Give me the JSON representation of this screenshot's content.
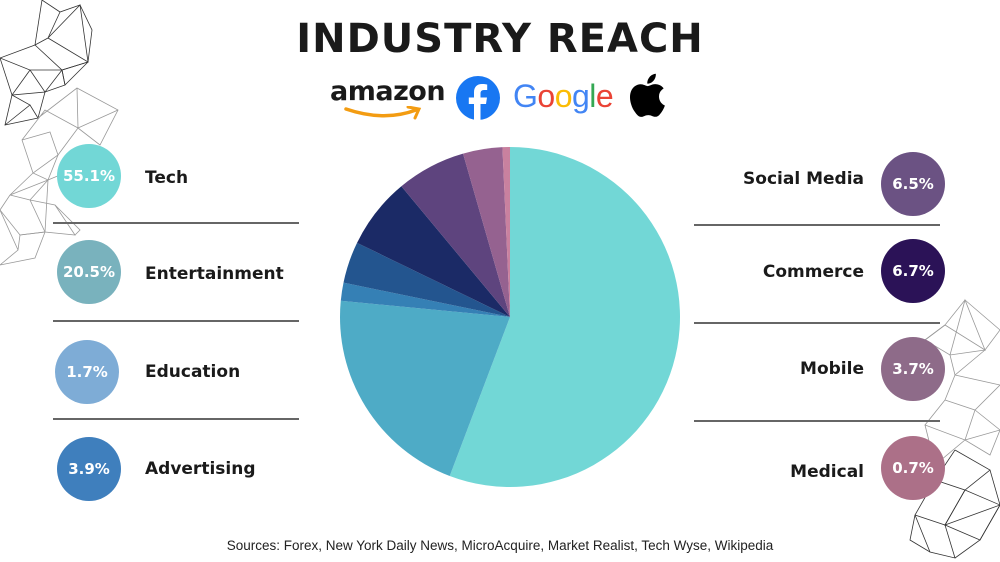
{
  "header": {
    "title": "INDUSTRY REACH",
    "logos": [
      "amazon",
      "facebook-logo",
      "Google",
      "apple-logo"
    ],
    "amazon_text": "amazon",
    "google_letters": [
      {
        "ch": "G",
        "color": "#4285F4"
      },
      {
        "ch": "o",
        "color": "#EA4335"
      },
      {
        "ch": "o",
        "color": "#FBBC05"
      },
      {
        "ch": "g",
        "color": "#4285F4"
      },
      {
        "ch": "l",
        "color": "#34A853"
      },
      {
        "ch": "e",
        "color": "#EA4335"
      }
    ]
  },
  "left_legend": [
    {
      "label": "Tech",
      "value_text": "55.1%",
      "color": "#72d7d6"
    },
    {
      "label": "Entertainment",
      "value_text": "20.5%",
      "color": "#79b2bd"
    },
    {
      "label": "Education",
      "value_text": "1.7%",
      "color": "#7eacd6"
    },
    {
      "label": "Advertising",
      "value_text": "3.9%",
      "color": "#3f7fbd"
    }
  ],
  "right_legend": [
    {
      "label": "Social Media",
      "value_text": "6.5%",
      "color": "#6b5283"
    },
    {
      "label": "Commerce",
      "value_text": "6.7%",
      "color": "#2b1257"
    },
    {
      "label": "Mobile",
      "value_text": "3.7%",
      "color": "#8e6b89"
    },
    {
      "label": "Medical",
      "value_text": "0.7%",
      "color": "#ac7088"
    }
  ],
  "footer": {
    "sources": "Sources:  Forex, New York Daily News, MicroAcquire,  Market Realist, Tech Wyse, Wikipedia"
  },
  "chart_data": {
    "type": "pie",
    "title": "INDUSTRY REACH",
    "categories": [
      "Tech",
      "Entertainment",
      "Education",
      "Advertising",
      "Commerce",
      "Social Media",
      "Mobile",
      "Medical"
    ],
    "values": [
      55.1,
      20.5,
      1.7,
      3.9,
      6.7,
      6.5,
      3.7,
      0.7
    ],
    "colors": [
      "#72d7d6",
      "#4eabc6",
      "#3580b5",
      "#23558f",
      "#1b2a66",
      "#5e447e",
      "#956290",
      "#c9819f"
    ],
    "units": "%",
    "start_angle_deg": 0,
    "direction": "clockwise",
    "legend_position": "split left/right",
    "source": "Sources:  Forex, New York Daily News, MicroAcquire,  Market Realist, Tech Wyse, Wikipedia"
  }
}
